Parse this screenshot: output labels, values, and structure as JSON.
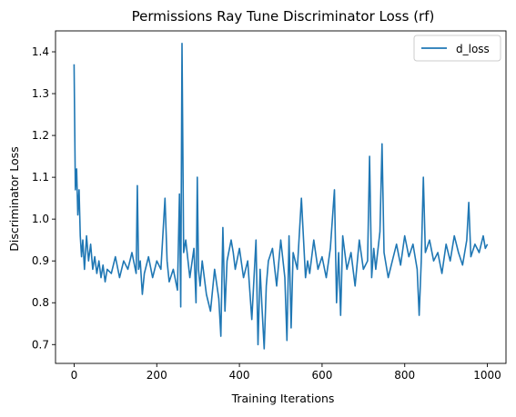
{
  "chart_data": {
    "type": "line",
    "title": "Permissions Ray Tune Discriminator Loss (rf)",
    "xlabel": "Training Iterations",
    "ylabel": "Discriminator Loss",
    "xlim": [
      -45,
      1045
    ],
    "ylim": [
      0.655,
      1.45
    ],
    "xticks": [
      0,
      200,
      400,
      600,
      800,
      1000
    ],
    "yticks": [
      0.7,
      0.8,
      0.9,
      1.0,
      1.1,
      1.2,
      1.3,
      1.4
    ],
    "ytick_labels": [
      "0.7",
      "0.8",
      "0.9",
      "1.0",
      "1.1",
      "1.2",
      "1.3",
      "1.4"
    ],
    "grid": false,
    "legend_position": "top-right",
    "series": [
      {
        "name": "d_loss",
        "color": "#1f77b4",
        "x": [
          0,
          3,
          6,
          9,
          12,
          15,
          18,
          21,
          25,
          30,
          35,
          40,
          45,
          50,
          55,
          60,
          65,
          70,
          75,
          80,
          90,
          100,
          110,
          120,
          130,
          140,
          150,
          153,
          156,
          160,
          165,
          170,
          180,
          190,
          200,
          210,
          220,
          225,
          230,
          240,
          250,
          255,
          258,
          261,
          265,
          270,
          280,
          290,
          295,
          298,
          301,
          305,
          310,
          320,
          330,
          340,
          350,
          355,
          360,
          365,
          370,
          380,
          385,
          390,
          400,
          410,
          420,
          430,
          440,
          445,
          450,
          455,
          460,
          465,
          470,
          480,
          490,
          500,
          510,
          515,
          520,
          525,
          530,
          540,
          550,
          560,
          565,
          570,
          580,
          590,
          600,
          610,
          620,
          630,
          635,
          640,
          645,
          650,
          660,
          670,
          680,
          690,
          700,
          710,
          715,
          720,
          725,
          730,
          740,
          745,
          750,
          760,
          770,
          780,
          790,
          800,
          810,
          820,
          830,
          835,
          840,
          845,
          850,
          860,
          870,
          880,
          890,
          900,
          910,
          920,
          930,
          940,
          950,
          955,
          960,
          970,
          980,
          990,
          995,
          1000
        ],
        "y": [
          1.37,
          1.07,
          1.12,
          1.01,
          1.07,
          0.96,
          0.91,
          0.95,
          0.88,
          0.96,
          0.9,
          0.94,
          0.88,
          0.91,
          0.87,
          0.9,
          0.86,
          0.89,
          0.85,
          0.88,
          0.87,
          0.91,
          0.86,
          0.9,
          0.88,
          0.92,
          0.87,
          1.08,
          0.88,
          0.9,
          0.82,
          0.87,
          0.91,
          0.86,
          0.9,
          0.88,
          1.05,
          0.9,
          0.85,
          0.88,
          0.83,
          1.06,
          0.79,
          1.42,
          0.92,
          0.95,
          0.86,
          0.93,
          0.8,
          1.1,
          0.88,
          0.84,
          0.9,
          0.82,
          0.78,
          0.88,
          0.81,
          0.72,
          0.98,
          0.78,
          0.9,
          0.95,
          0.92,
          0.88,
          0.93,
          0.86,
          0.9,
          0.76,
          0.95,
          0.7,
          0.88,
          0.78,
          0.69,
          0.84,
          0.9,
          0.93,
          0.84,
          0.95,
          0.86,
          0.71,
          0.96,
          0.74,
          0.92,
          0.88,
          1.05,
          0.86,
          0.9,
          0.87,
          0.95,
          0.88,
          0.91,
          0.86,
          0.93,
          1.07,
          0.8,
          0.92,
          0.77,
          0.96,
          0.88,
          0.92,
          0.84,
          0.95,
          0.88,
          0.9,
          1.15,
          0.86,
          0.93,
          0.88,
          0.97,
          1.18,
          0.92,
          0.86,
          0.9,
          0.94,
          0.89,
          0.96,
          0.91,
          0.94,
          0.88,
          0.77,
          0.9,
          1.1,
          0.92,
          0.95,
          0.9,
          0.92,
          0.87,
          0.94,
          0.9,
          0.96,
          0.92,
          0.89,
          0.95,
          1.04,
          0.91,
          0.94,
          0.92,
          0.96,
          0.93,
          0.94
        ]
      }
    ]
  }
}
